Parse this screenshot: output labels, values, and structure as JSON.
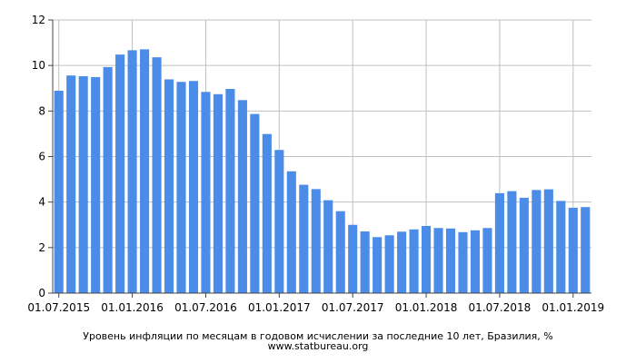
{
  "chart_data": {
    "type": "bar",
    "title": "Уровень инфляции по месяцам в годовом исчислении за последние 10 лет, Бразилия, %",
    "source": "www.statbureau.org",
    "xlabel": "",
    "ylabel": "",
    "ylim": [
      0,
      12
    ],
    "yticks": [
      "0",
      "2",
      "4",
      "6",
      "8",
      "10",
      "12"
    ],
    "grid": true,
    "legend": "none",
    "bar_color": "#4a8ce8",
    "grid_color": "#c0c0c0",
    "axis_color": "#444444",
    "x_tick_labels": [
      {
        "label": "01.07.2015",
        "index": 0
      },
      {
        "label": "01.01.2016",
        "index": 6
      },
      {
        "label": "01.07.2016",
        "index": 12
      },
      {
        "label": "01.01.2017",
        "index": 18
      },
      {
        "label": "01.07.2017",
        "index": 24
      },
      {
        "label": "01.01.2018",
        "index": 30
      },
      {
        "label": "01.07.2018",
        "index": 36
      },
      {
        "label": "01.01.2019",
        "index": 42
      }
    ],
    "categories": [
      "2015-06",
      "2015-07",
      "2015-08",
      "2015-09",
      "2015-10",
      "2015-11",
      "2015-12",
      "2016-01",
      "2016-02",
      "2016-03",
      "2016-04",
      "2016-05",
      "2016-06",
      "2016-07",
      "2016-08",
      "2016-09",
      "2016-10",
      "2016-11",
      "2016-12",
      "2017-01",
      "2017-02",
      "2017-03",
      "2017-04",
      "2017-05",
      "2017-06",
      "2017-07",
      "2017-08",
      "2017-09",
      "2017-10",
      "2017-11",
      "2017-12",
      "2018-01",
      "2018-02",
      "2018-03",
      "2018-04",
      "2018-05",
      "2018-06",
      "2018-07",
      "2018-08",
      "2018-09",
      "2018-10",
      "2018-11",
      "2018-12",
      "2019-01"
    ],
    "values": [
      8.89,
      9.56,
      9.53,
      9.49,
      9.93,
      10.48,
      10.67,
      10.71,
      10.36,
      9.39,
      9.28,
      9.32,
      8.84,
      8.74,
      8.97,
      8.48,
      7.87,
      6.99,
      6.29,
      5.35,
      4.76,
      4.57,
      4.08,
      3.6,
      3.0,
      2.71,
      2.46,
      2.54,
      2.7,
      2.8,
      2.95,
      2.86,
      2.84,
      2.68,
      2.76,
      2.86,
      4.39,
      4.48,
      4.19,
      4.53,
      4.56,
      4.05,
      3.75,
      3.78
    ]
  }
}
